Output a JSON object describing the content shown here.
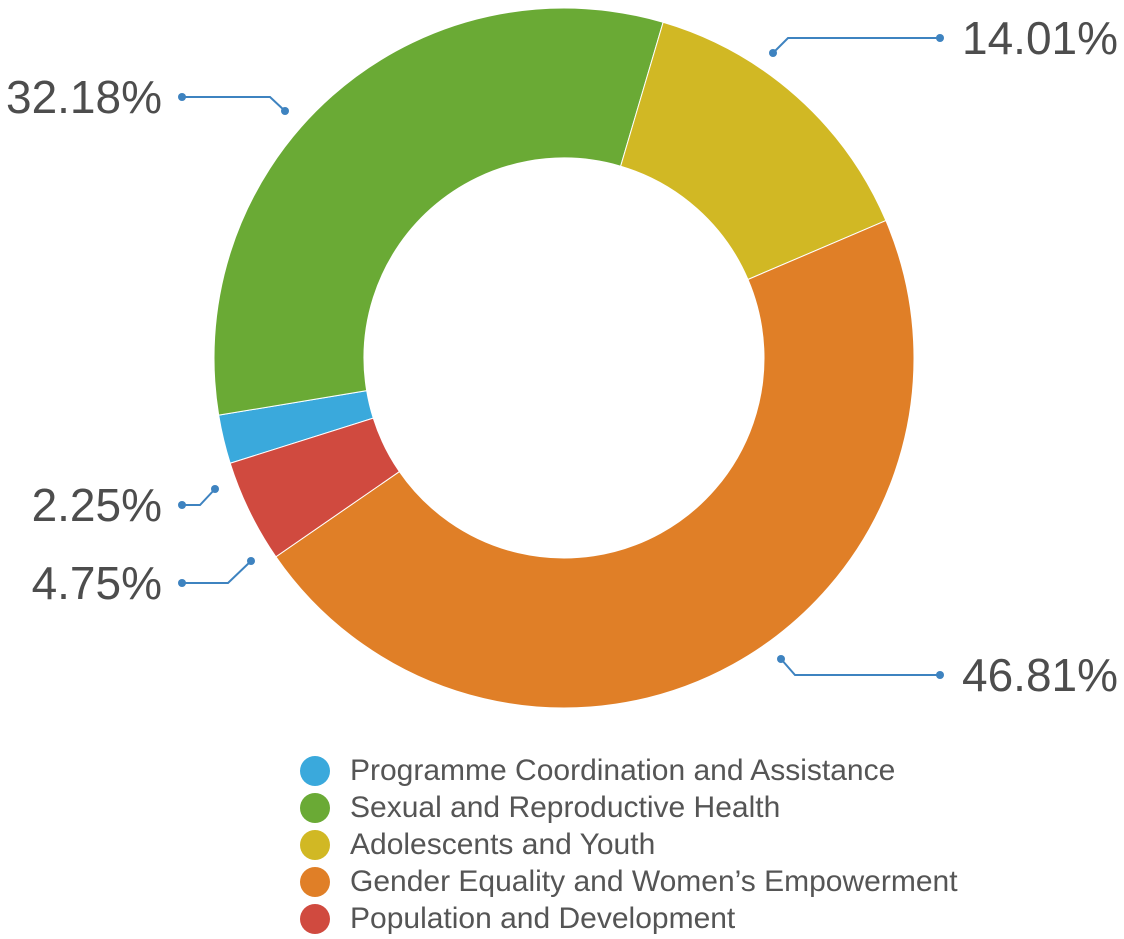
{
  "chart_data": {
    "type": "pie",
    "donut": true,
    "slices": [
      {
        "label": "Programme Coordination and Assistance",
        "value": 2.25,
        "display": "2.25%",
        "color": "#3aa9dc"
      },
      {
        "label": "Sexual and Reproductive Health",
        "value": 32.18,
        "display": "32.18%",
        "color": "#6aaa35"
      },
      {
        "label": "Adolescents and Youth",
        "value": 14.01,
        "display": "14.01%",
        "color": "#d1b824"
      },
      {
        "label": "Gender Equality and Women’s Empowerment",
        "value": 46.81,
        "display": "46.81%",
        "color": "#e07f27"
      },
      {
        "label": "Population and Development",
        "value": 4.75,
        "display": "4.75%",
        "color": "#d04a3f"
      }
    ],
    "legend": {
      "placement": "bottom"
    },
    "leader_line_color": "#3e83c0"
  }
}
